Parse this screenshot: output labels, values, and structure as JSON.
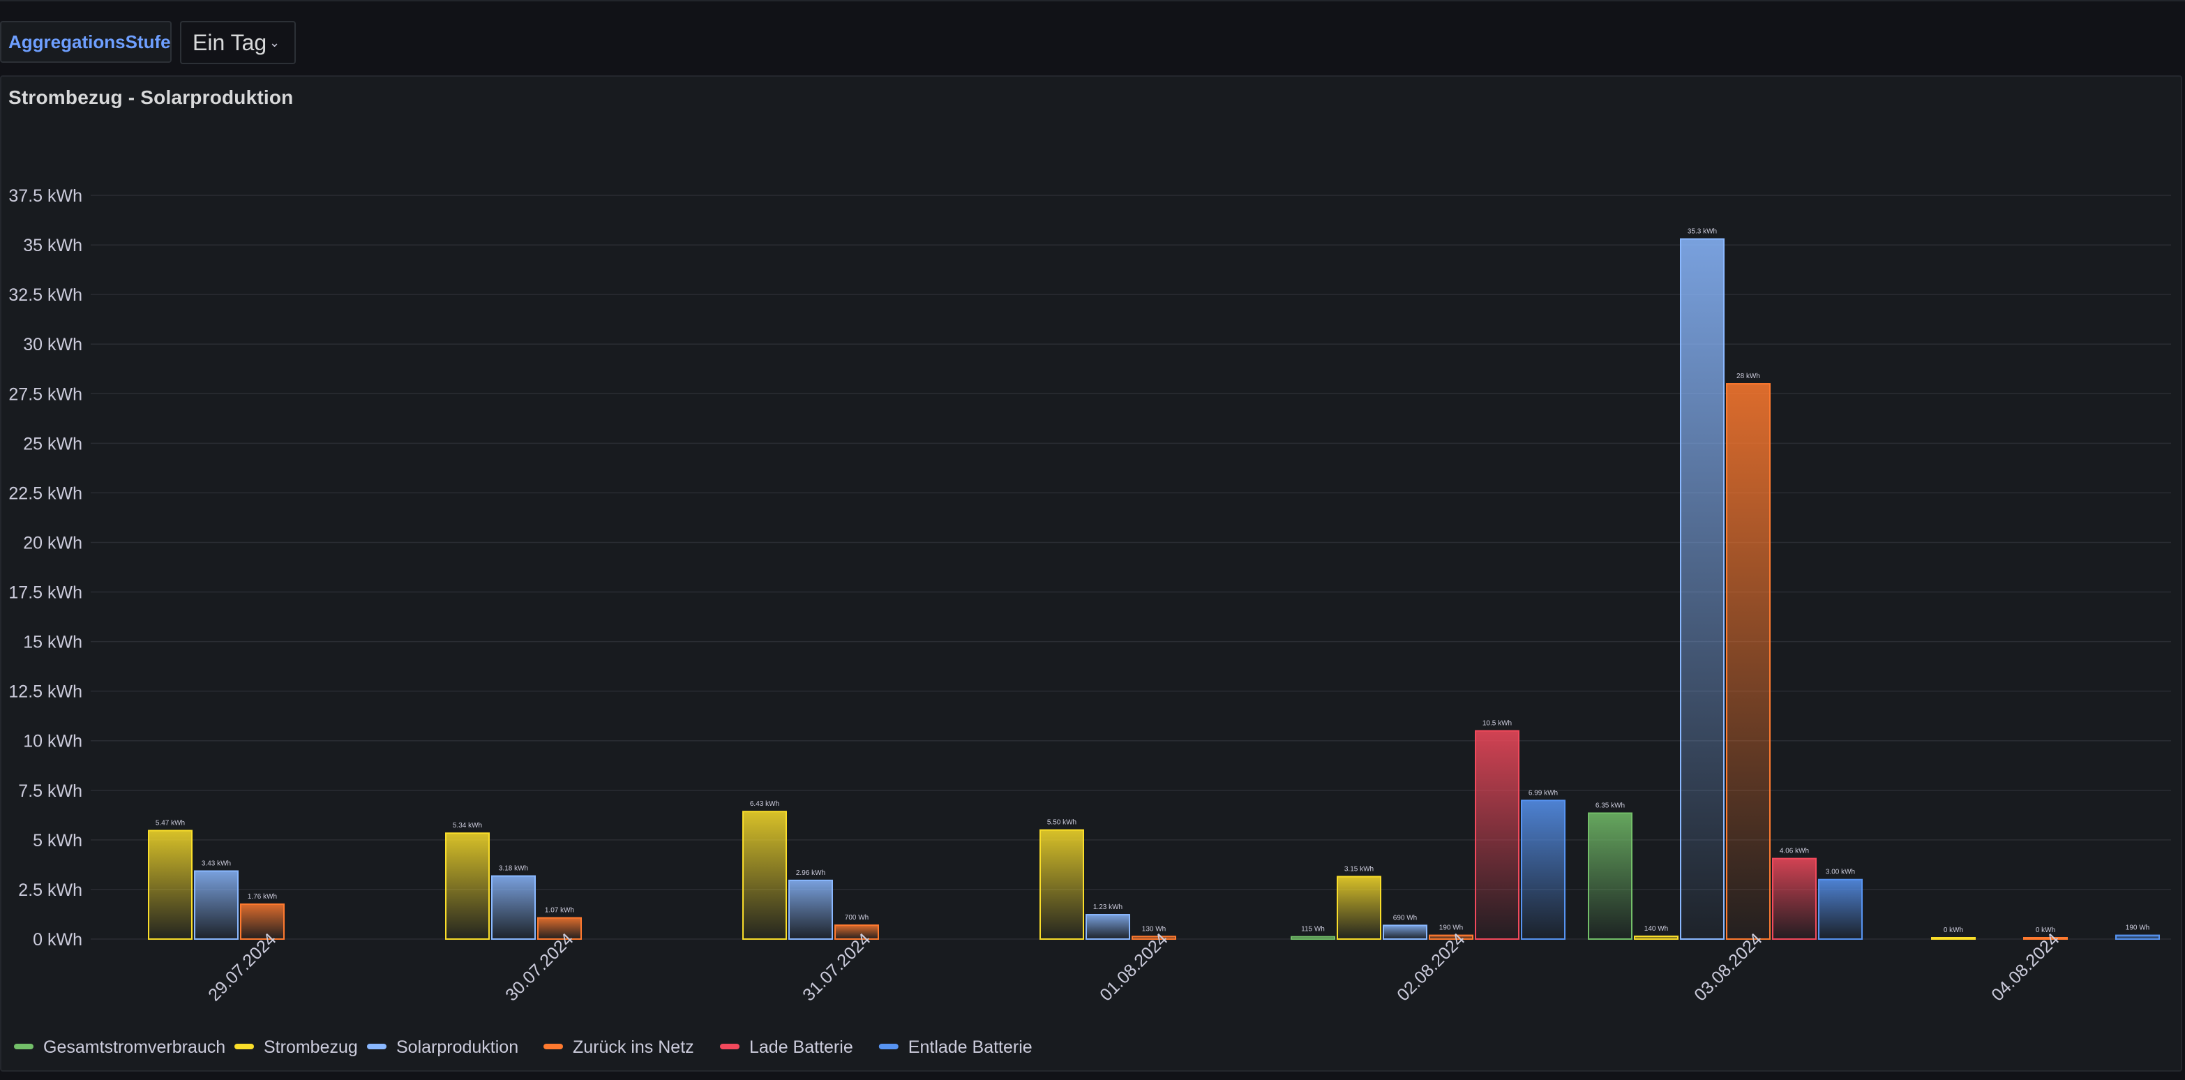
{
  "variables": {
    "label": "AggregationsStufe",
    "selected": "Ein Tag",
    "chevron_icon": "chevron-down-icon"
  },
  "panel": {
    "title": "Strombezug - Solarproduktion"
  },
  "colors": {
    "Gesamtstromverbrauch": "#73bf69",
    "Strombezug": "#fade2a",
    "Solarproduktion": "#8ab8ff",
    "Zurück ins Netz": "#ff7a2f",
    "Lade Batterie": "#f2495c",
    "Entlade Batterie": "#5794f2"
  },
  "chart_data": {
    "type": "bar",
    "title": "Strombezug - Solarproduktion",
    "unit": "kWh",
    "ylim": [
      0,
      37.5
    ],
    "yticks": [
      "0 kWh",
      "2.5 kWh",
      "5 kWh",
      "7.5 kWh",
      "10 kWh",
      "12.5 kWh",
      "15 kWh",
      "17.5 kWh",
      "20 kWh",
      "22.5 kWh",
      "25 kWh",
      "27.5 kWh",
      "30 kWh",
      "32.5 kWh",
      "35 kWh",
      "37.5 kWh"
    ],
    "grid": true,
    "legend_position": "bottom",
    "categories": [
      "29.07.2024",
      "30.07.2024",
      "31.07.2024",
      "01.08.2024",
      "02.08.2024",
      "03.08.2024",
      "04.08.2024"
    ],
    "series": [
      {
        "name": "Gesamtstromverbrauch",
        "values": [
          null,
          null,
          null,
          null,
          0.115,
          6.35,
          null
        ],
        "labels": [
          null,
          null,
          null,
          null,
          "115 Wh",
          "6.35 kWh",
          null
        ]
      },
      {
        "name": "Strombezug",
        "values": [
          5.47,
          5.34,
          6.43,
          5.5,
          3.15,
          0.14,
          0
        ],
        "labels": [
          "5.47 kWh",
          "5.34 kWh",
          "6.43 kWh",
          "5.50 kWh",
          "3.15 kWh",
          "140 Wh",
          "0 kWh"
        ]
      },
      {
        "name": "Solarproduktion",
        "values": [
          3.43,
          3.18,
          2.96,
          1.23,
          0.69,
          35.3,
          null
        ],
        "labels": [
          "3.43 kWh",
          "3.18 kWh",
          "2.96 kWh",
          "1.23 kWh",
          "690 Wh",
          "35.3 kWh",
          null
        ]
      },
      {
        "name": "Zurück ins Netz",
        "values": [
          1.76,
          1.07,
          0.7,
          0.13,
          0.19,
          28,
          0
        ],
        "labels": [
          "1.76 kWh",
          "1.07 kWh",
          "700 Wh",
          "130 Wh",
          "190 Wh",
          "28 kWh",
          "0 kWh"
        ]
      },
      {
        "name": "Lade Batterie",
        "values": [
          null,
          null,
          null,
          null,
          10.5,
          4.06,
          null
        ],
        "labels": [
          null,
          null,
          null,
          null,
          "10.5 kWh",
          "4.06 kWh",
          null
        ]
      },
      {
        "name": "Entlade Batterie",
        "values": [
          null,
          null,
          null,
          null,
          6.99,
          3.0,
          0.19
        ],
        "labels": [
          null,
          null,
          null,
          null,
          "6.99 kWh",
          "3.00 kWh",
          "190 Wh"
        ]
      }
    ]
  }
}
